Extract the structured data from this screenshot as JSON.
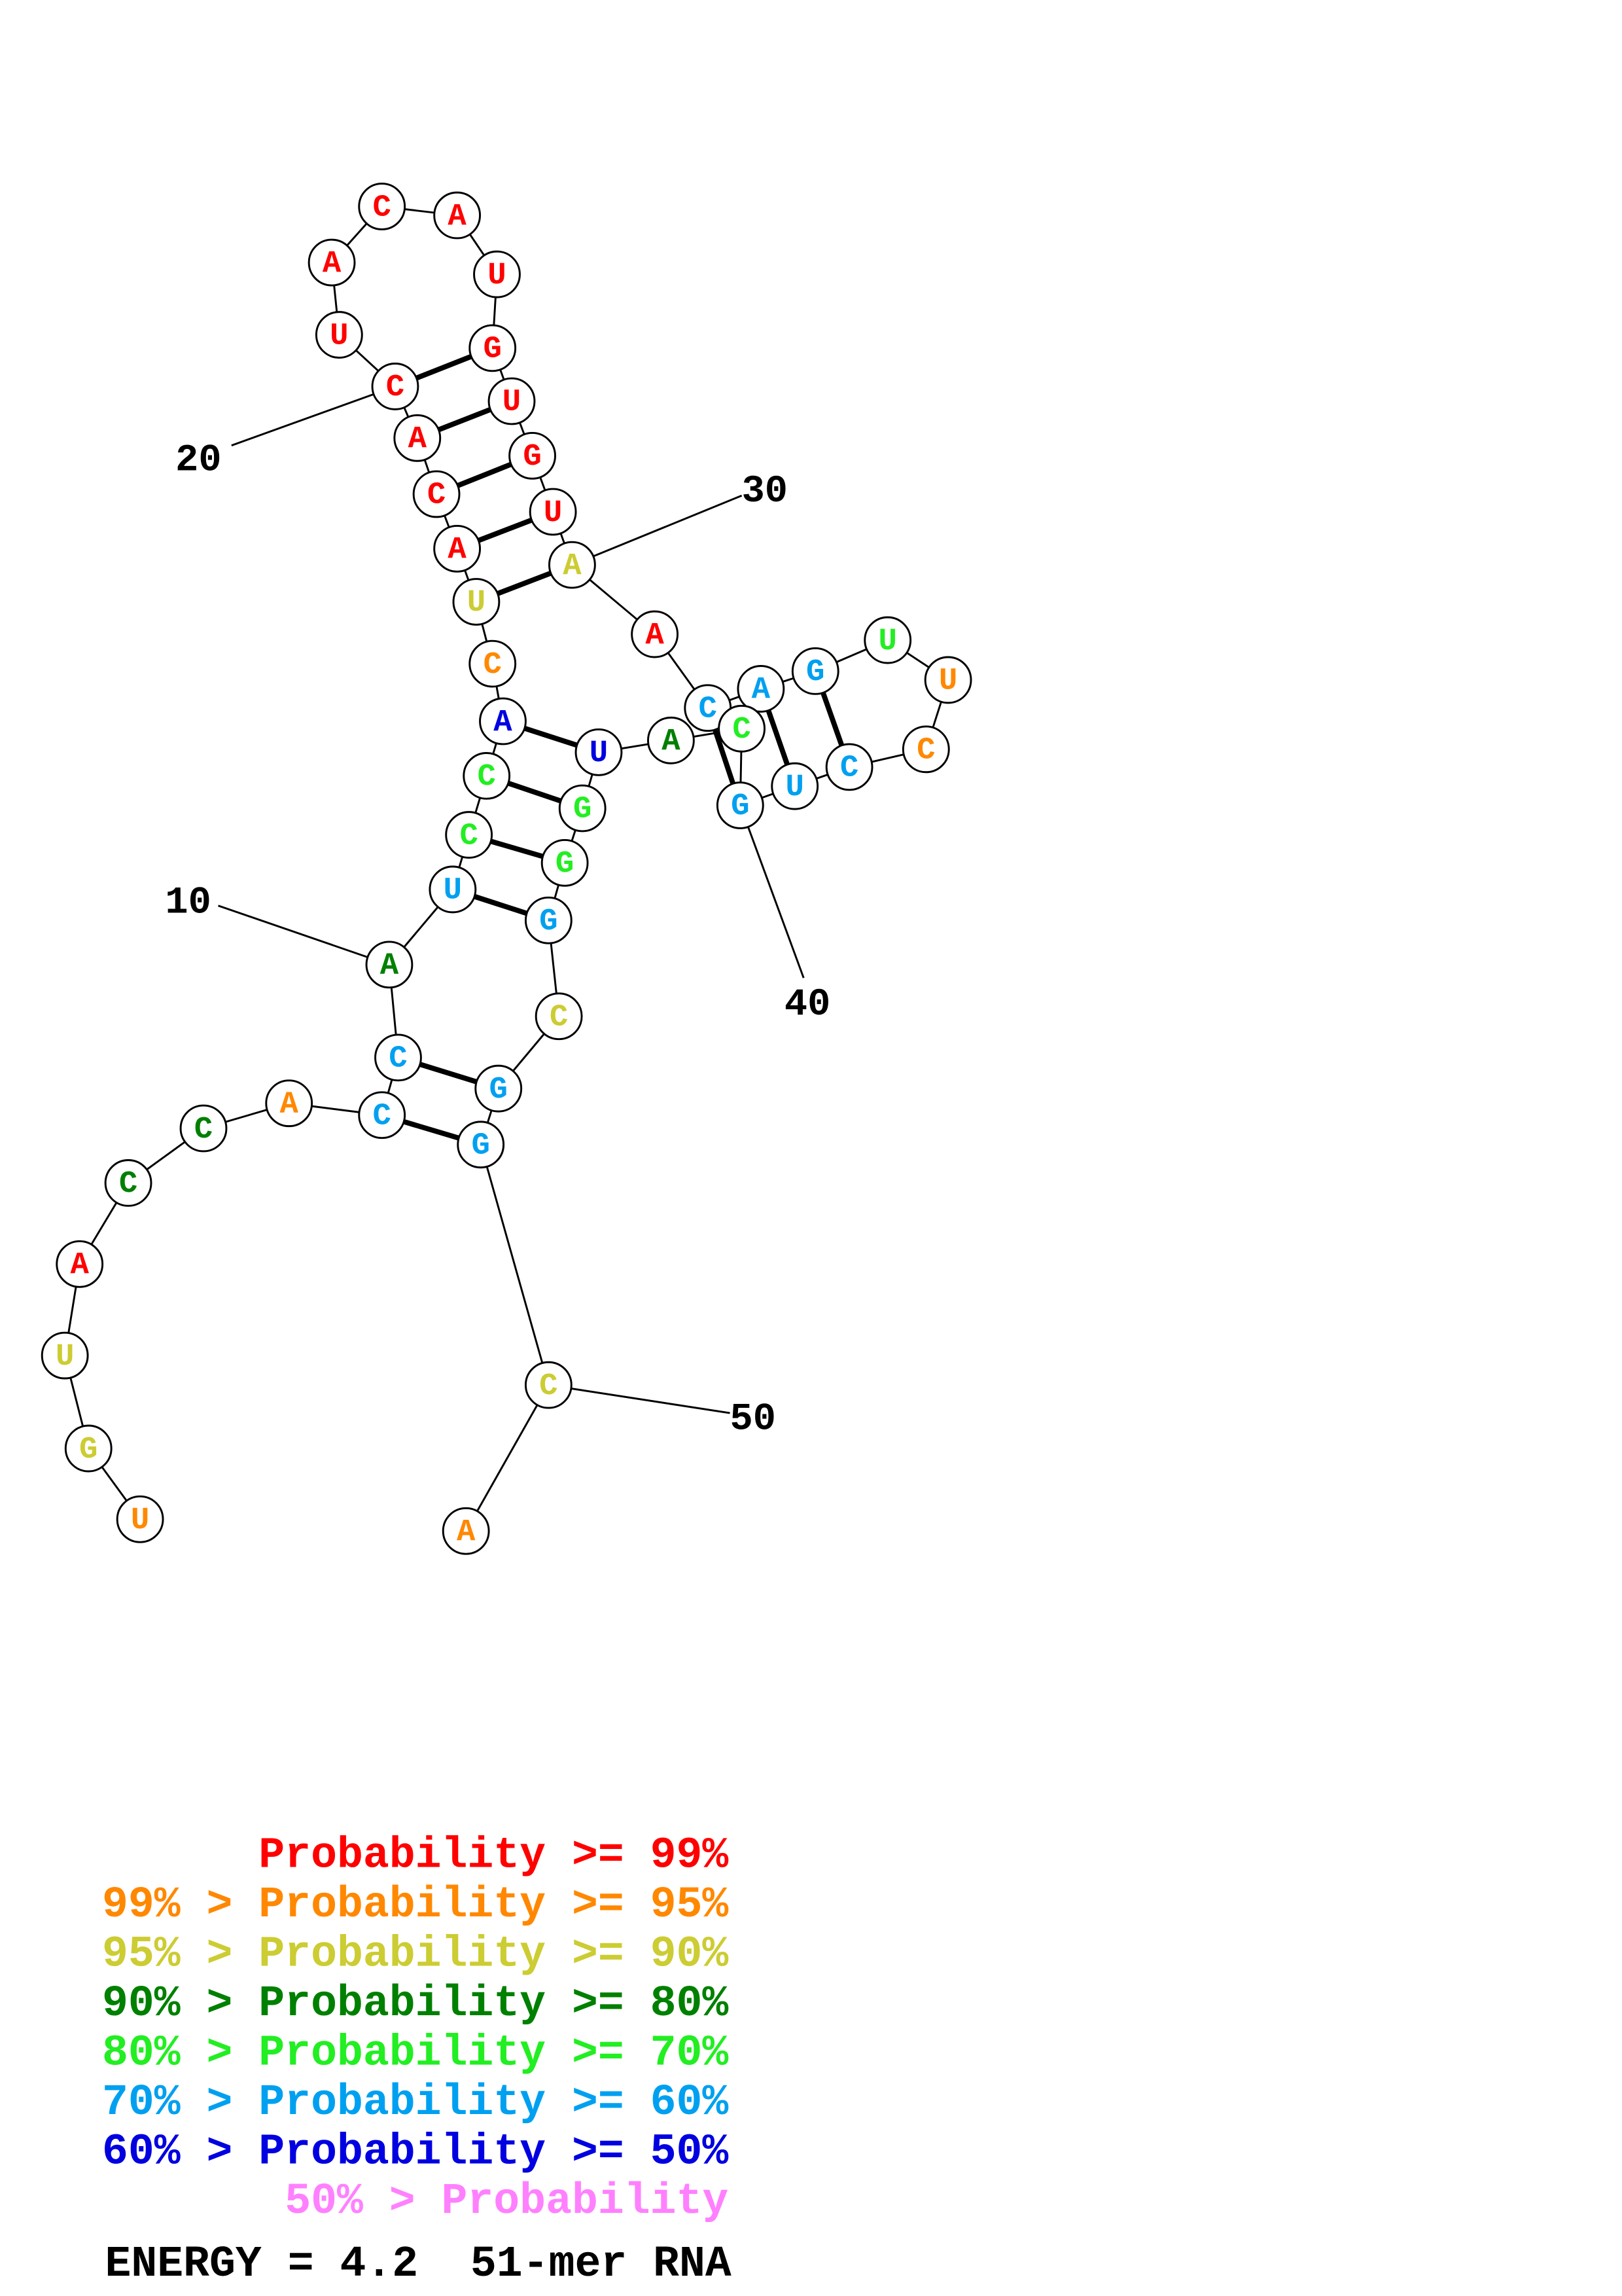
{
  "structure": {
    "nucleotides": [
      {
        "base": "U",
        "color": "#ff8800"
      },
      {
        "base": "G",
        "color": "#cccc33"
      },
      {
        "base": "U",
        "color": "#cccc33"
      },
      {
        "base": "A",
        "color": "#ff0000"
      },
      {
        "base": "C",
        "color": "#008000"
      },
      {
        "base": "C",
        "color": "#008000"
      },
      {
        "base": "A",
        "color": "#ff8800"
      },
      {
        "base": "C",
        "color": "#00a0f0"
      },
      {
        "base": "C",
        "color": "#00a0f0"
      },
      {
        "base": "A",
        "color": "#008000"
      },
      {
        "base": "U",
        "color": "#00a0f0"
      },
      {
        "base": "C",
        "color": "#22ee22"
      },
      {
        "base": "C",
        "color": "#22ee22"
      },
      {
        "base": "A",
        "color": "#0000e0"
      },
      {
        "base": "C",
        "color": "#ff8800"
      },
      {
        "base": "U",
        "color": "#cccc33"
      },
      {
        "base": "A",
        "color": "#ff0000"
      },
      {
        "base": "C",
        "color": "#ff0000"
      },
      {
        "base": "A",
        "color": "#ff0000"
      },
      {
        "base": "C",
        "color": "#ff0000"
      },
      {
        "base": "U",
        "color": "#ff0000"
      },
      {
        "base": "A",
        "color": "#ff0000"
      },
      {
        "base": "C",
        "color": "#ff0000"
      },
      {
        "base": "A",
        "color": "#ff0000"
      },
      {
        "base": "U",
        "color": "#ff0000"
      },
      {
        "base": "G",
        "color": "#ff0000"
      },
      {
        "base": "U",
        "color": "#ff0000"
      },
      {
        "base": "G",
        "color": "#ff0000"
      },
      {
        "base": "U",
        "color": "#ff0000"
      },
      {
        "base": "A",
        "color": "#cccc33"
      },
      {
        "base": "A",
        "color": "#ff0000"
      },
      {
        "base": "C",
        "color": "#00a0f0"
      },
      {
        "base": "A",
        "color": "#00a0f0"
      },
      {
        "base": "G",
        "color": "#00a0f0"
      },
      {
        "base": "U",
        "color": "#22ee22"
      },
      {
        "base": "U",
        "color": "#ff8800"
      },
      {
        "base": "C",
        "color": "#ff8800"
      },
      {
        "base": "C",
        "color": "#00a0f0"
      },
      {
        "base": "U",
        "color": "#00a0f0"
      },
      {
        "base": "G",
        "color": "#00a0f0"
      },
      {
        "base": "C",
        "color": "#22ee22"
      },
      {
        "base": "A",
        "color": "#008000"
      },
      {
        "base": "U",
        "color": "#0000e0"
      },
      {
        "base": "G",
        "color": "#22ee22"
      },
      {
        "base": "G",
        "color": "#22ee22"
      },
      {
        "base": "G",
        "color": "#00a0f0"
      },
      {
        "base": "C",
        "color": "#cccc33"
      },
      {
        "base": "G",
        "color": "#00a0f0"
      },
      {
        "base": "G",
        "color": "#00a0f0"
      },
      {
        "base": "C",
        "color": "#cccc33"
      },
      {
        "base": "A",
        "color": "#ff8800"
      }
    ],
    "position_labels": [
      "10",
      "20",
      "30",
      "40",
      "50"
    ],
    "legend": [
      {
        "text": "Probability >= 99%",
        "color": "#ff0000"
      },
      {
        "text": "99% > Probability >= 95%",
        "color": "#ff8800"
      },
      {
        "text": "95% > Probability >= 90%",
        "color": "#cccc33"
      },
      {
        "text": "90% > Probability >= 80%",
        "color": "#008000"
      },
      {
        "text": "80% > Probability >= 70%",
        "color": "#22ee22"
      },
      {
        "text": "70% > Probability >= 60%",
        "color": "#00a0f0"
      },
      {
        "text": "60% > Probability >= 50%",
        "color": "#0000e0"
      },
      {
        "text": "50% > Probability",
        "color": "#ff80ff"
      }
    ],
    "energy_label": "ENERGY = 4.2  51-mer RNA"
  }
}
